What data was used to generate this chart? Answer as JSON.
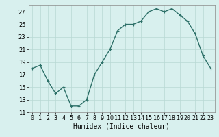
{
  "x": [
    0,
    1,
    2,
    3,
    4,
    5,
    6,
    7,
    8,
    9,
    10,
    11,
    12,
    13,
    14,
    15,
    16,
    17,
    18,
    19,
    20,
    21,
    22,
    23
  ],
  "y": [
    18,
    18.5,
    16,
    14,
    15,
    12,
    12,
    13,
    17,
    19,
    21,
    24,
    25,
    25,
    25.5,
    27,
    27.5,
    27,
    27.5,
    26.5,
    25.5,
    23.5,
    20,
    18
  ],
  "line_color": "#2d7068",
  "marker": "+",
  "marker_size": 3,
  "bg_color": "#d8f0ee",
  "grid_color": "#b8d8d4",
  "xlabel": "Humidex (Indice chaleur)",
  "xlim": [
    -0.5,
    23.5
  ],
  "ylim": [
    11,
    28
  ],
  "yticks": [
    11,
    13,
    15,
    17,
    19,
    21,
    23,
    25,
    27
  ],
  "xtick_labels": [
    "0",
    "1",
    "2",
    "3",
    "4",
    "5",
    "6",
    "7",
    "8",
    "9",
    "10",
    "11",
    "12",
    "13",
    "14",
    "15",
    "16",
    "17",
    "18",
    "19",
    "20",
    "21",
    "22",
    "23"
  ],
  "tick_fontsize": 6,
  "xlabel_fontsize": 7,
  "linewidth": 1.0
}
